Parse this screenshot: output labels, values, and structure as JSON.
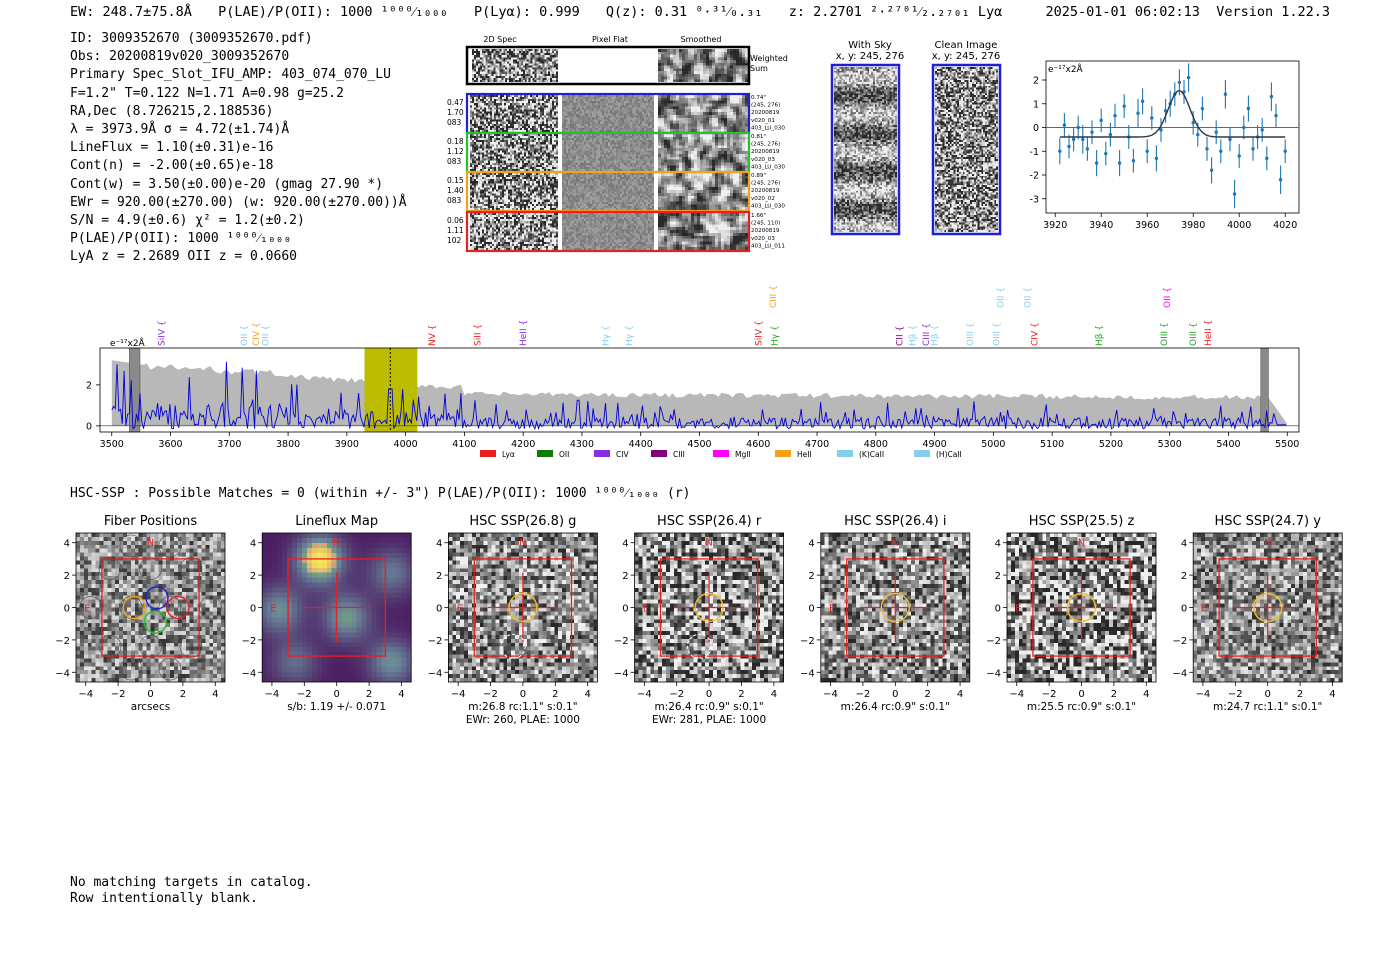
{
  "header": {
    "ew": "EW: 248.7±75.8Å",
    "plae": "P(LAE)/P(OII): 1000 ¹⁰⁰⁰⁄₁₀₀₀",
    "plya": "P(Lyα): 0.999",
    "qz": "Q(z): 0.31 ⁰·³¹⁄₀.₃₁",
    "z": "z: 2.2701 ²·²⁷⁰¹⁄₂.₂₇₀₁ Lyα",
    "timestamp": "2025-01-01 06:02:13",
    "version": "Version 1.22.3"
  },
  "info": [
    "ID: 3009352670 (3009352670.pdf)",
    "Obs: 20200819v020_3009352670",
    "Primary Spec_Slot_IFU_AMP: 403_074_070_LU",
    "F=1.2\"  T=0.122  N=1.71  A=0.98  g=25.2",
    "RA,Dec (8.726215,2.188536)",
    "λ = 3973.9Å   σ = 4.72(±1.74)Å",
    "LineFlux = 1.10(±0.31)e-16",
    "Cont(n) = -2.00(±0.65)e-18",
    "Cont(w) = 3.50(±0.00)e-20 (gmag 27.90 *)",
    "EWr = 920.00(±270.00) (w: 920.00(±270.00))Å",
    "S/N = 4.9(±0.6)  χ² = 1.2(±0.2)",
    "P(LAE)/P(OII): 1000 ¹⁰⁰⁰⁄₁₀₀₀",
    "LyA z = 2.2689  OII z = 0.0660"
  ],
  "cutouts": {
    "col_labels": [
      "2D Spec",
      "Pixel Flat",
      "Smoothed"
    ],
    "weighted_label": [
      "Weighted",
      "Sum"
    ],
    "rows": [
      {
        "left": [
          "0.47",
          "1.70",
          "083"
        ],
        "right": [
          "0.74\"",
          "(245, 276)",
          "20200819",
          "v020_01",
          "403_LU_030"
        ],
        "color": "#1f1fd6"
      },
      {
        "left": [
          "0.18",
          "1.12",
          "083"
        ],
        "right": [
          "0.81\"",
          "(245, 276)",
          "20200819",
          "v020_03",
          "403_LU_030"
        ],
        "color": "#22c42a"
      },
      {
        "left": [
          "0.15",
          "1.40",
          "083"
        ],
        "right": [
          "0.89\"",
          "(245, 276)",
          "20200819",
          "v020_02",
          "403_LU_030"
        ],
        "color": "#f4a21a"
      },
      {
        "left": [
          "0.06",
          "1.11",
          "102"
        ],
        "right": [
          "1.66\"",
          "(245, 110)",
          "20200819",
          "v020_03",
          "403_LU_011"
        ],
        "color": "#e81f1f"
      }
    ]
  },
  "sky": {
    "with_sky_title": [
      "With Sky",
      "x, y: 245, 276"
    ],
    "clean_title": [
      "Clean Image",
      "x, y: 245, 276"
    ]
  },
  "zoom_chart": {
    "ylabel": "e⁻¹⁷x2Å",
    "xticks": [
      "3920",
      "3940",
      "3960",
      "3980",
      "4000",
      "4020"
    ],
    "yticks": [
      "2",
      "1",
      "0",
      "-1",
      "-2",
      "-3"
    ]
  },
  "chart_data": [
    {
      "type": "scatter",
      "title": "",
      "xlabel": "",
      "ylabel": "e-17 x2Å",
      "xlim": [
        3916,
        4026
      ],
      "ylim": [
        -3.6,
        2.8
      ],
      "points": [
        [
          3922,
          -1.0,
          0.55
        ],
        [
          3924,
          0.1,
          0.5
        ],
        [
          3926,
          -0.8,
          0.5
        ],
        [
          3928,
          -0.5,
          0.5
        ],
        [
          3930,
          0.0,
          0.5
        ],
        [
          3932,
          -0.5,
          0.6
        ],
        [
          3934,
          -0.9,
          0.5
        ],
        [
          3936,
          -0.2,
          0.5
        ],
        [
          3938,
          -1.5,
          0.55
        ],
        [
          3940,
          0.3,
          0.5
        ],
        [
          3942,
          -1.1,
          0.5
        ],
        [
          3944,
          -0.3,
          0.5
        ],
        [
          3946,
          0.5,
          0.5
        ],
        [
          3948,
          -1.5,
          0.55
        ],
        [
          3950,
          0.9,
          0.5
        ],
        [
          3952,
          -0.4,
          0.5
        ],
        [
          3954,
          -1.4,
          0.5
        ],
        [
          3956,
          0.6,
          0.6
        ],
        [
          3958,
          1.1,
          0.55
        ],
        [
          3960,
          -1.0,
          0.5
        ],
        [
          3962,
          0.4,
          0.5
        ],
        [
          3964,
          -1.3,
          0.55
        ],
        [
          3966,
          -0.1,
          0.5
        ],
        [
          3968,
          0.7,
          0.5
        ],
        [
          3970,
          1.0,
          0.55
        ],
        [
          3972,
          1.4,
          0.5
        ],
        [
          3974,
          1.9,
          0.55
        ],
        [
          3976,
          1.5,
          0.5
        ],
        [
          3978,
          2.1,
          0.6
        ],
        [
          3980,
          0.2,
          0.5
        ],
        [
          3982,
          -0.3,
          0.5
        ],
        [
          3984,
          0.8,
          0.5
        ],
        [
          3986,
          -0.9,
          0.5
        ],
        [
          3988,
          -1.8,
          0.55
        ],
        [
          3990,
          -0.2,
          0.5
        ],
        [
          3992,
          -1.0,
          0.5
        ],
        [
          3994,
          1.4,
          0.6
        ],
        [
          3996,
          -0.5,
          0.5
        ],
        [
          3998,
          -2.8,
          0.6
        ],
        [
          4000,
          -1.2,
          0.5
        ],
        [
          4002,
          0.0,
          0.5
        ],
        [
          4004,
          0.8,
          0.55
        ],
        [
          4006,
          -0.9,
          0.5
        ],
        [
          4008,
          -0.4,
          0.5
        ],
        [
          4010,
          -0.1,
          0.5
        ],
        [
          4012,
          -1.3,
          0.5
        ],
        [
          4014,
          1.3,
          0.6
        ],
        [
          4016,
          0.5,
          0.5
        ],
        [
          4018,
          -2.2,
          0.6
        ],
        [
          4020,
          -1.0,
          0.5
        ]
      ],
      "model": {
        "continuum": -0.4,
        "amplitude": 1.95,
        "center": 3973.9,
        "sigma": 4.72
      }
    },
    {
      "type": "line",
      "title": "",
      "xlabel": "",
      "ylabel": "e-17 x2Å",
      "xlim": [
        3480,
        5520
      ],
      "ylim": [
        -0.3,
        3.8
      ],
      "xticks": [
        3500,
        3600,
        3700,
        3800,
        3900,
        4000,
        4100,
        4200,
        4300,
        4400,
        4500,
        4600,
        4700,
        4800,
        4900,
        5000,
        5100,
        5200,
        5300,
        5400,
        5500
      ],
      "yticks": [
        0,
        2
      ],
      "highlight_band": [
        3930,
        4020
      ],
      "line_marker": 3973.9,
      "series": [
        {
          "name": "noise envelope",
          "color": "#b8b8b8",
          "fill": true
        },
        {
          "name": "spectrum",
          "color": "#0000d6",
          "fill": false
        }
      ],
      "line_labels": [
        {
          "name": "SiIV",
          "x": 3585,
          "color": "#8a2be2",
          "row": "low"
        },
        {
          "name": "OII",
          "x": 3725,
          "color": "#87ceeb",
          "row": "low"
        },
        {
          "name": "CIV",
          "x": 3745,
          "color": "#f4a21a",
          "row": "low"
        },
        {
          "name": "OII",
          "x": 3762,
          "color": "#87ceeb",
          "row": "low"
        },
        {
          "name": "NV",
          "x": 4045,
          "color": "#e81f1f",
          "row": "low"
        },
        {
          "name": "SiII",
          "x": 4122,
          "color": "#e81f1f",
          "row": "low"
        },
        {
          "name": "HeII",
          "x": 4200,
          "color": "#8a2be2",
          "row": "low"
        },
        {
          "name": "Hγ",
          "x": 4340,
          "color": "#87ceeb",
          "row": "low"
        },
        {
          "name": "Hγ",
          "x": 4380,
          "color": "#87ceeb",
          "row": "low"
        },
        {
          "name": "SiIV",
          "x": 4600,
          "color": "#e81f1f",
          "row": "low"
        },
        {
          "name": "CIII",
          "x": 4625,
          "color": "#f4a21a",
          "row": "high"
        },
        {
          "name": "Hγ",
          "x": 4628,
          "color": "#22a722",
          "row": "low"
        },
        {
          "name": "CII",
          "x": 4840,
          "color": "#800080",
          "row": "low"
        },
        {
          "name": "Hβ",
          "x": 4862,
          "color": "#87ceeb",
          "row": "low"
        },
        {
          "name": "CIII",
          "x": 4885,
          "color": "#8a2be2",
          "row": "low"
        },
        {
          "name": "Hβ",
          "x": 4900,
          "color": "#87ceeb",
          "row": "low"
        },
        {
          "name": "OIII",
          "x": 4960,
          "color": "#87ceeb",
          "row": "low"
        },
        {
          "name": "OIII",
          "x": 5005,
          "color": "#87ceeb",
          "row": "low"
        },
        {
          "name": "OII",
          "x": 5012,
          "color": "#87ceeb",
          "row": "high"
        },
        {
          "name": "OII",
          "x": 5058,
          "color": "#87ceeb",
          "row": "high"
        },
        {
          "name": "CIV",
          "x": 5070,
          "color": "#e81f1f",
          "row": "low"
        },
        {
          "name": "Hβ",
          "x": 5180,
          "color": "#22a722",
          "row": "low"
        },
        {
          "name": "OIII",
          "x": 5290,
          "color": "#22a722",
          "row": "low"
        },
        {
          "name": "OII",
          "x": 5295,
          "color": "#ff00ff",
          "row": "high"
        },
        {
          "name": "OIII",
          "x": 5340,
          "color": "#22a722",
          "row": "low"
        },
        {
          "name": "HeII",
          "x": 5365,
          "color": "#e81f1f",
          "row": "low"
        }
      ],
      "legend": [
        {
          "name": "Lyα",
          "color": "#e81f1f"
        },
        {
          "name": "OII",
          "color": "#0d7a0d"
        },
        {
          "name": "CIV",
          "color": "#8a2be2"
        },
        {
          "name": "CIII",
          "color": "#800080"
        },
        {
          "name": "MgII",
          "color": "#ff00ff"
        },
        {
          "name": "HeII",
          "color": "#f4a21a"
        },
        {
          "name": "(K)CaII",
          "color": "#87ceeb"
        },
        {
          "name": "(H)CaII",
          "color": "#87ceeb"
        }
      ],
      "legend_position": "bottom-center"
    }
  ],
  "spec_ylabel": "e⁻¹⁷x2Å",
  "hsc": {
    "header": "HSC-SSP : Possible Matches = 0 (within +/- 3\")  P(LAE)/P(OII): 1000 ¹⁰⁰⁰⁄₁₀₀₀ (r)",
    "panel_ticks": [
      "4",
      "2",
      "0",
      "−2",
      "−4"
    ],
    "compass_n": "N",
    "compass_e": "E",
    "panels": [
      {
        "title": "Fiber Positions",
        "caption": [
          "arcsecs"
        ],
        "kind": "fiber"
      },
      {
        "title": "Lineflux Map",
        "caption": [
          "s/b: 1.19 +/- 0.071"
        ],
        "kind": "flux"
      },
      {
        "title": "HSC SSP(26.8) g",
        "caption": [
          "m:26.8 rc:1.1\"  s:0.1\"",
          "EWr: 260, PLAE: 1000"
        ],
        "kind": "img",
        "seed": 11,
        "contrast": 0.55
      },
      {
        "title": "HSC SSP(26.4) r",
        "caption": [
          "m:26.4 rc:0.9\"  s:0.1\"",
          "EWr: 281, PLAE: 1000"
        ],
        "kind": "img",
        "seed": 23,
        "contrast": 0.7
      },
      {
        "title": "HSC SSP(26.4) i",
        "caption": [
          "m:26.4 rc:0.9\"  s:0.1\""
        ],
        "kind": "img",
        "seed": 37,
        "contrast": 0.55
      },
      {
        "title": "HSC SSP(25.5) z",
        "caption": [
          "m:25.5 rc:0.9\"  s:0.1\""
        ],
        "kind": "img",
        "seed": 41,
        "contrast": 0.8
      },
      {
        "title": "HSC SSP(24.7) y",
        "caption": [
          "m:24.7 rc:1.1\"  s:0.1\""
        ],
        "kind": "img",
        "seed": 53,
        "contrast": 0.5
      }
    ]
  },
  "footer": [
    "No matching targets in catalog.",
    "Row intentionally blank."
  ]
}
